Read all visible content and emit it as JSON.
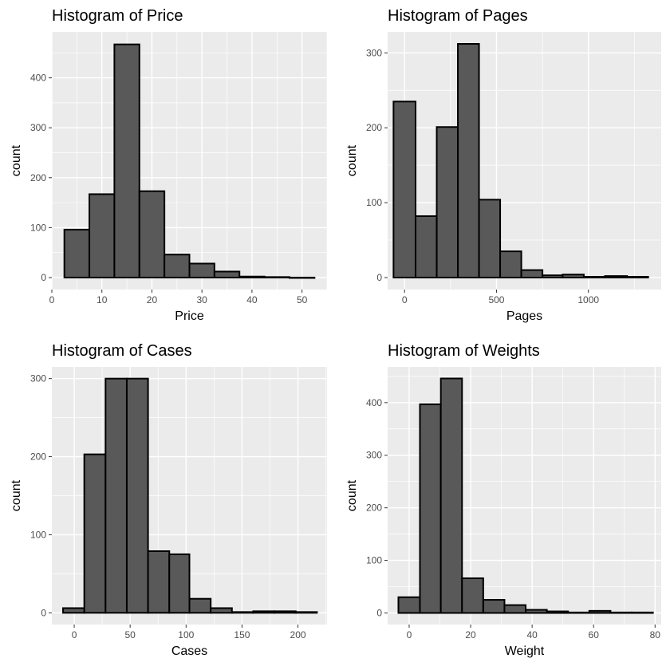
{
  "chart_data": [
    {
      "type": "bar",
      "title": "Histogram of Price",
      "xlabel": "Price",
      "ylabel": "count",
      "xlim": [
        0,
        55
      ],
      "ylim": [
        -24,
        492
      ],
      "xticks": [
        0,
        10,
        20,
        30,
        40,
        50
      ],
      "yticks": [
        0,
        100,
        200,
        300,
        400
      ],
      "bins": [
        {
          "x0": 2.5,
          "x1": 7.5,
          "count": 96
        },
        {
          "x0": 7.5,
          "x1": 12.5,
          "count": 167
        },
        {
          "x0": 12.5,
          "x1": 17.5,
          "count": 467
        },
        {
          "x0": 17.5,
          "x1": 22.5,
          "count": 173
        },
        {
          "x0": 22.5,
          "x1": 27.5,
          "count": 46
        },
        {
          "x0": 27.5,
          "x1": 32.5,
          "count": 28
        },
        {
          "x0": 32.5,
          "x1": 37.5,
          "count": 12
        },
        {
          "x0": 37.5,
          "x1": 42.5,
          "count": 2
        },
        {
          "x0": 42.5,
          "x1": 47.5,
          "count": 1
        },
        {
          "x0": 47.5,
          "x1": 52.5,
          "count": 0
        }
      ]
    },
    {
      "type": "bar",
      "title": "Histogram of Pages",
      "xlabel": "Pages",
      "ylabel": "count",
      "xlim": [
        -92,
        1396
      ],
      "ylim": [
        -16,
        328
      ],
      "xticks": [
        0,
        500,
        1000
      ],
      "yticks": [
        0,
        100,
        200,
        300
      ],
      "bins": [
        {
          "x0": -60,
          "x1": 60,
          "count": 235
        },
        {
          "x0": 60,
          "x1": 175,
          "count": 82
        },
        {
          "x0": 175,
          "x1": 290,
          "count": 201
        },
        {
          "x0": 290,
          "x1": 405,
          "count": 312
        },
        {
          "x0": 405,
          "x1": 520,
          "count": 104
        },
        {
          "x0": 520,
          "x1": 635,
          "count": 35
        },
        {
          "x0": 635,
          "x1": 750,
          "count": 10
        },
        {
          "x0": 750,
          "x1": 860,
          "count": 3
        },
        {
          "x0": 860,
          "x1": 975,
          "count": 4
        },
        {
          "x0": 975,
          "x1": 1090,
          "count": 1
        },
        {
          "x0": 1090,
          "x1": 1210,
          "count": 2
        },
        {
          "x0": 1210,
          "x1": 1325,
          "count": 1
        }
      ]
    },
    {
      "type": "bar",
      "title": "Histogram of Cases",
      "xlabel": "Cases",
      "ylabel": "count",
      "xlim": [
        -20,
        226
      ],
      "ylim": [
        -15,
        315
      ],
      "xticks": [
        0,
        50,
        100,
        150,
        200
      ],
      "yticks": [
        0,
        100,
        200,
        300
      ],
      "bins": [
        {
          "x0": -10,
          "x1": 9,
          "count": 6
        },
        {
          "x0": 9,
          "x1": 28,
          "count": 203
        },
        {
          "x0": 28,
          "x1": 47,
          "count": 300
        },
        {
          "x0": 47,
          "x1": 66,
          "count": 300
        },
        {
          "x0": 66,
          "x1": 85,
          "count": 79
        },
        {
          "x0": 85,
          "x1": 103,
          "count": 75
        },
        {
          "x0": 103,
          "x1": 122,
          "count": 18
        },
        {
          "x0": 122,
          "x1": 141,
          "count": 6
        },
        {
          "x0": 141,
          "x1": 160,
          "count": 1
        },
        {
          "x0": 160,
          "x1": 179,
          "count": 2
        },
        {
          "x0": 179,
          "x1": 198,
          "count": 2
        },
        {
          "x0": 198,
          "x1": 217,
          "count": 1
        }
      ]
    },
    {
      "type": "bar",
      "title": "Histogram of Weights",
      "xlabel": "Weight",
      "ylabel": "count",
      "xlim": [
        -7,
        82
      ],
      "ylim": [
        -22,
        468
      ],
      "xticks": [
        0,
        20,
        40,
        60,
        80
      ],
      "yticks": [
        0,
        100,
        200,
        300,
        400
      ],
      "bins": [
        {
          "x0": -3.5,
          "x1": 3.5,
          "count": 30
        },
        {
          "x0": 3.5,
          "x1": 10.3,
          "count": 397
        },
        {
          "x0": 10.3,
          "x1": 17.2,
          "count": 446
        },
        {
          "x0": 17.2,
          "x1": 24.1,
          "count": 66
        },
        {
          "x0": 24.1,
          "x1": 31.0,
          "count": 25
        },
        {
          "x0": 31.0,
          "x1": 37.9,
          "count": 15
        },
        {
          "x0": 37.9,
          "x1": 44.8,
          "count": 6
        },
        {
          "x0": 44.8,
          "x1": 51.7,
          "count": 3
        },
        {
          "x0": 51.7,
          "x1": 58.6,
          "count": 1
        },
        {
          "x0": 58.6,
          "x1": 65.5,
          "count": 4
        },
        {
          "x0": 65.5,
          "x1": 72.4,
          "count": 1
        },
        {
          "x0": 72.4,
          "x1": 79.3,
          "count": 1
        }
      ]
    }
  ]
}
